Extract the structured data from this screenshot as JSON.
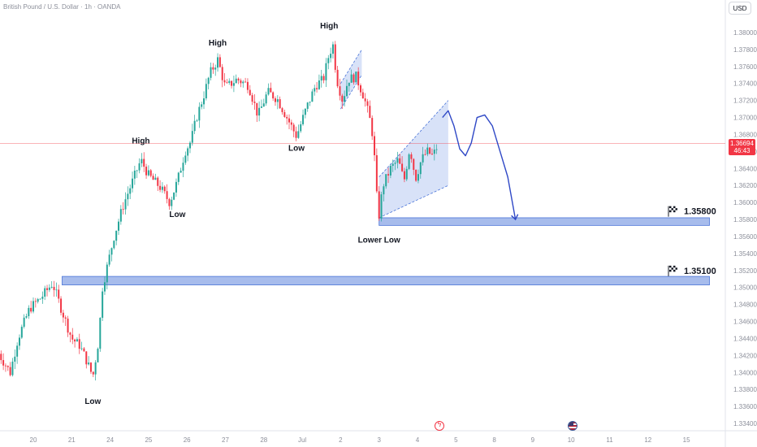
{
  "header": {
    "symbol": "British Pound / U.S. Dollar · 1h · OANDA",
    "currency": "USD"
  },
  "last_price": {
    "value": "1.36694",
    "countdown": "46:43"
  },
  "events": [
    {
      "icon": "flash-event-icon"
    },
    {
      "icon": "us-flag-event-icon"
    }
  ],
  "colors": {
    "up": "#26a69a",
    "down": "#f23645",
    "zone": "#8aa5e6",
    "zone_border": "#4a74d8",
    "channel": "#c8d5f5",
    "projection": "#2f48c6",
    "price_line": "#f23645"
  },
  "chart_data": {
    "type": "candlestick",
    "title": "British Pound / U.S. Dollar · 1h · OANDA",
    "xlabel": "",
    "ylabel": "",
    "ylim": [
      1.333,
      1.382
    ],
    "grid": false,
    "x_ticks": [
      "20",
      "21",
      "24",
      "25",
      "26",
      "27",
      "28",
      "Jul",
      "2",
      "3",
      "4",
      "5",
      "8",
      "9",
      "10",
      "11",
      "12",
      "15"
    ],
    "x_tick_pos": [
      0,
      1,
      2,
      3,
      4,
      5,
      6,
      7,
      8,
      9,
      10,
      11,
      12,
      13,
      14,
      15,
      16,
      17
    ],
    "y_ticks": [
      "1.38000",
      "1.37800",
      "1.37600",
      "1.37400",
      "1.37200",
      "1.37000",
      "1.36800",
      "1.36600",
      "1.36400",
      "1.36200",
      "1.36000",
      "1.35800",
      "1.35600",
      "1.35400",
      "1.35200",
      "1.35000",
      "1.34800",
      "1.34600",
      "1.34400",
      "1.34200",
      "1.34000",
      "1.33800",
      "1.33600",
      "1.33400"
    ],
    "y_tick_vals": [
      1.38,
      1.378,
      1.376,
      1.374,
      1.372,
      1.37,
      1.368,
      1.366,
      1.364,
      1.362,
      1.36,
      1.358,
      1.356,
      1.354,
      1.352,
      1.35,
      1.348,
      1.346,
      1.344,
      1.342,
      1.34,
      1.338,
      1.336,
      1.334
    ],
    "price_path": [
      [
        -0.9,
        1.3422
      ],
      [
        -0.6,
        1.34
      ],
      [
        -0.4,
        1.344
      ],
      [
        -0.1,
        1.3475
      ],
      [
        0.2,
        1.3488
      ],
      [
        0.5,
        1.3505
      ],
      [
        0.75,
        1.3472
      ],
      [
        1.0,
        1.344
      ],
      [
        1.2,
        1.3432
      ],
      [
        1.35,
        1.3418
      ],
      [
        1.55,
        1.3395
      ],
      [
        1.7,
        1.3438
      ],
      [
        1.8,
        1.35
      ],
      [
        1.9,
        1.352
      ],
      [
        2.1,
        1.356
      ],
      [
        2.35,
        1.3598
      ],
      [
        2.6,
        1.3627
      ],
      [
        2.8,
        1.365
      ],
      [
        3.0,
        1.3632
      ],
      [
        3.3,
        1.3618
      ],
      [
        3.55,
        1.36
      ],
      [
        3.75,
        1.3625
      ],
      [
        3.95,
        1.366
      ],
      [
        4.1,
        1.3672
      ],
      [
        4.25,
        1.37
      ],
      [
        4.45,
        1.3728
      ],
      [
        4.6,
        1.3752
      ],
      [
        4.8,
        1.3768
      ],
      [
        5.0,
        1.3735
      ],
      [
        5.3,
        1.3745
      ],
      [
        5.6,
        1.3738
      ],
      [
        5.85,
        1.3702
      ],
      [
        6.1,
        1.373
      ],
      [
        6.35,
        1.3722
      ],
      [
        6.6,
        1.37
      ],
      [
        6.85,
        1.3678
      ],
      [
        7.1,
        1.371
      ],
      [
        7.35,
        1.3738
      ],
      [
        7.55,
        1.3745
      ],
      [
        7.7,
        1.3775
      ],
      [
        7.8,
        1.3785
      ],
      [
        7.9,
        1.3745
      ],
      [
        8.05,
        1.372
      ],
      [
        8.2,
        1.3745
      ],
      [
        8.4,
        1.3748
      ],
      [
        8.6,
        1.3725
      ],
      [
        8.75,
        1.37
      ],
      [
        8.85,
        1.3675
      ],
      [
        8.95,
        1.36
      ],
      [
        9.0,
        1.3585
      ],
      [
        9.1,
        1.362
      ],
      [
        9.3,
        1.364
      ],
      [
        9.5,
        1.365
      ],
      [
        9.65,
        1.3625
      ],
      [
        9.8,
        1.3665
      ],
      [
        9.95,
        1.3628
      ],
      [
        10.1,
        1.365
      ],
      [
        10.25,
        1.366
      ],
      [
        10.4,
        1.3655
      ],
      [
        10.55,
        1.3669
      ]
    ],
    "candle_step": 0.06,
    "last_price": 1.36694,
    "zones": [
      {
        "x0": 9.0,
        "x1": 17.6,
        "y_low": 1.3573,
        "y_high": 1.3582,
        "label": "1.35800"
      },
      {
        "x0": 0.75,
        "x1": 17.6,
        "y_low": 1.3503,
        "y_high": 1.3513,
        "label": "1.35100"
      }
    ],
    "channels": [
      {
        "x0": 8.0,
        "x1": 8.55,
        "low0": 1.371,
        "low1": 1.375,
        "high0": 1.374,
        "high1": 1.378
      },
      {
        "x0": 9.0,
        "x1": 10.8,
        "low0": 1.3582,
        "low1": 1.362,
        "high0": 1.363,
        "high1": 1.372
      }
    ],
    "projection": [
      [
        10.65,
        1.37
      ],
      [
        10.8,
        1.3708
      ],
      [
        10.95,
        1.369
      ],
      [
        11.1,
        1.3663
      ],
      [
        11.25,
        1.3655
      ],
      [
        11.4,
        1.367
      ],
      [
        11.55,
        1.37
      ],
      [
        11.75,
        1.3703
      ],
      [
        11.95,
        1.369
      ],
      [
        12.15,
        1.366
      ],
      [
        12.35,
        1.363
      ],
      [
        12.55,
        1.358
      ]
    ],
    "annotations": [
      {
        "text": "High",
        "x": 4.8,
        "y": 1.3775,
        "pos": "above"
      },
      {
        "text": "High",
        "x": 7.7,
        "y": 1.3795,
        "pos": "above"
      },
      {
        "text": "High",
        "x": 2.8,
        "y": 1.366,
        "pos": "above"
      },
      {
        "text": "Low",
        "x": 3.75,
        "y": 1.36,
        "pos": "below"
      },
      {
        "text": "Low",
        "x": 6.85,
        "y": 1.3678,
        "pos": "below"
      },
      {
        "text": "Low",
        "x": 1.55,
        "y": 1.338,
        "pos": "below"
      },
      {
        "text": "Lower Low",
        "x": 9.0,
        "y": 1.357,
        "pos": "below"
      }
    ],
    "target_labels": [
      {
        "text": "1.35800",
        "y": 1.3588
      },
      {
        "text": "1.35100",
        "y": 1.3518
      }
    ]
  }
}
